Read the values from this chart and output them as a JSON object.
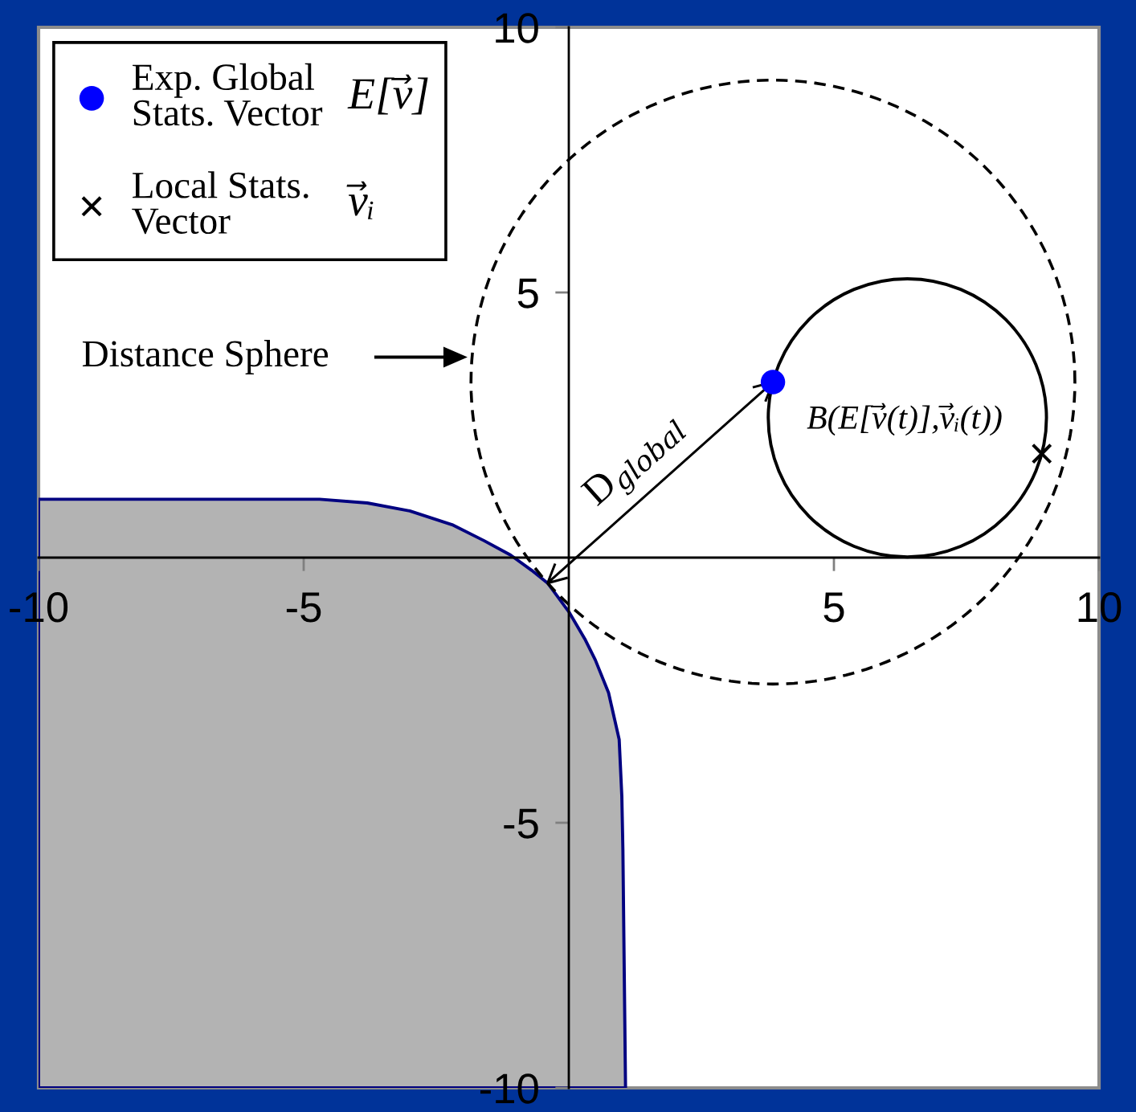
{
  "chart_data": {
    "type": "area",
    "xlim": [
      -10,
      10
    ],
    "ylim": [
      -10,
      10
    ],
    "xticks": [
      -10,
      -5,
      5,
      10
    ],
    "yticks": [
      -10,
      -5,
      5,
      10
    ],
    "legend": "top left",
    "series": [
      {
        "x": [
          -10,
          -10,
          -4.7,
          -3.8,
          -3.0,
          -2.2,
          -1.6,
          -1.1,
          -0.7,
          -0.4,
          0,
          0.3,
          0.5,
          0.75,
          0.95,
          1.0,
          1.02,
          1.07
        ],
        "values": [
          -10,
          1.1,
          1.1,
          1.03,
          0.88,
          0.62,
          0.32,
          0.05,
          -0.24,
          -0.48,
          -1.02,
          -1.53,
          -1.93,
          -2.55,
          -3.43,
          -4.5,
          -5.5,
          -10
        ],
        "color": "#b3b3b3"
      },
      {
        "type": "scatter",
        "name": "Exp. Global\nStats. Vector",
        "x": [
          3.85
        ],
        "values": [
          3.31
        ],
        "color": "#0000ff",
        "marker": "circle"
      },
      {
        "type": "scatter",
        "name": "Local Stats.\nVector",
        "x": [
          8.92
        ],
        "values": [
          1.96
        ],
        "color": "#000000",
        "marker": "cross"
      }
    ],
    "annotations": [
      "Distance Sphere",
      {
        "text": "D$_{global}$",
        "x": -0.4,
        "y": -0.48
      },
      "B(E[v⃗(t)],v⃗ᵢ(t))",
      "E[v⃗]",
      "v⃗ᵢ"
    ]
  }
}
